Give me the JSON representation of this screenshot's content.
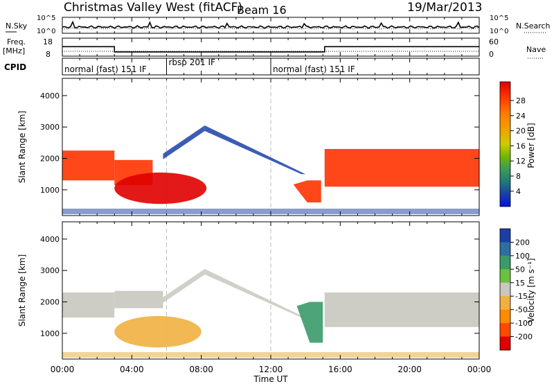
{
  "header": {
    "station": "Christmas Valley West (fitACF)",
    "beam": "Beam 16",
    "date": "19/Mar/2013"
  },
  "noise_panel": {
    "left_label": "N.Sky",
    "right_label": "N.Search",
    "right_line_style": "dotted",
    "left_ticks": [
      "10^5",
      "10^0"
    ],
    "right_ticks": [
      "10^5",
      "10^0"
    ]
  },
  "freq_panel": {
    "left_label_1": "Freq.",
    "left_label_2": "[MHz]",
    "right_label": "Nave",
    "right_line_style": "dotted",
    "left_ticks": [
      "18",
      "8"
    ],
    "right_ticks": [
      "60",
      "0"
    ],
    "freq_segments": [
      {
        "from_h": 0.0,
        "to_h": 3.0,
        "mhz": 13.5
      },
      {
        "from_h": 3.0,
        "to_h": 15.1,
        "mhz": 10.2
      },
      {
        "from_h": 15.1,
        "to_h": 24.0,
        "mhz": 13.5
      }
    ]
  },
  "cpid": {
    "label": "CPID",
    "segments": [
      {
        "text": "normal (fast) 151 IF",
        "from_h": 0.0,
        "to_h": 6.0
      },
      {
        "text": "rbsp 201 IF",
        "from_h": 6.0,
        "to_h": 12.0
      },
      {
        "text": "normal (fast) 151 IF",
        "from_h": 12.0,
        "to_h": 24.0
      }
    ]
  },
  "power_colorbar": {
    "label": "Power [dB]",
    "ticks": [
      "28",
      "24",
      "20",
      "16",
      "12",
      "8",
      "4"
    ],
    "colors": [
      "#e00000",
      "#ff3300",
      "#ff7a00",
      "#f0a000",
      "#cccc00",
      "#6fb800",
      "#3c9a5a",
      "#1f7a78",
      "#1a3fa8",
      "#0010e0"
    ]
  },
  "velocity_colorbar": {
    "label": "Velocity [m s⁻¹]",
    "ticks": [
      "200",
      "100",
      "50",
      "15",
      "-15",
      "-50",
      "-100",
      "-200"
    ],
    "colors": [
      "#1a3fa8",
      "#2e6fa0",
      "#3a9a6a",
      "#6cc040",
      "#c8c8c0",
      "#f0b040",
      "#ff8a00",
      "#ff4a00",
      "#e00000"
    ]
  },
  "chart_data": [
    {
      "type": "heatmap",
      "title": "Power",
      "xlabel": "",
      "ylabel": "Slant Range [km]",
      "xlim_h": [
        0,
        24
      ],
      "ylim_km": [
        180,
        4550
      ],
      "y_ticks": [
        "4000",
        "3000",
        "2000",
        "1000"
      ],
      "y_tick_values": [
        4000,
        3000,
        2000,
        1000
      ],
      "regions": [
        {
          "name": "band-left",
          "from_h": 0.0,
          "to_h": 3.0,
          "low_km": 1300,
          "high_km": 2250,
          "power_db": 26
        },
        {
          "name": "band-morning",
          "from_h": 3.0,
          "to_h": 5.2,
          "low_km": 1150,
          "high_km": 1950,
          "power_db": 25
        },
        {
          "name": "near-echo",
          "from_h": 3.0,
          "to_h": 8.3,
          "low_km": 550,
          "high_km": 1550,
          "power_db": 28
        },
        {
          "name": "arc-rise",
          "from_h": 5.8,
          "to_h": 8.2,
          "low_km": 2150,
          "high_km": 3050,
          "power_db": 6
        },
        {
          "name": "arc-fall",
          "from_h": 8.2,
          "to_h": 14.0,
          "low_km": 1500,
          "high_km": 3050,
          "power_db": 6
        },
        {
          "name": "cusp",
          "from_h": 13.3,
          "to_h": 14.9,
          "low_km": 600,
          "high_km": 1300,
          "power_db": 26
        },
        {
          "name": "band-right",
          "from_h": 15.1,
          "to_h": 24.0,
          "low_km": 1100,
          "high_km": 2300,
          "power_db": 25
        }
      ]
    },
    {
      "type": "heatmap",
      "title": "Velocity",
      "xlabel": "Time UT",
      "ylabel": "Slant Range [km]",
      "xlim_h": [
        0,
        24
      ],
      "ylim_km": [
        180,
        4550
      ],
      "x_ticks": [
        "00:00",
        "04:00",
        "08:00",
        "12:00",
        "16:00",
        "20:00",
        "00:00"
      ],
      "x_tick_hours": [
        0,
        4,
        8,
        12,
        16,
        20,
        24
      ],
      "y_ticks": [
        "4000",
        "3000",
        "2000",
        "1000"
      ],
      "y_tick_values": [
        4000,
        3000,
        2000,
        1000
      ],
      "regions": [
        {
          "name": "band-left",
          "from_h": 0.0,
          "to_h": 3.0,
          "low_km": 1500,
          "high_km": 2300,
          "velocity_ms": 0
        },
        {
          "name": "band-morning",
          "from_h": 3.0,
          "to_h": 5.8,
          "low_km": 1800,
          "high_km": 2350,
          "velocity_ms": 0
        },
        {
          "name": "near-echo",
          "from_h": 3.0,
          "to_h": 8.0,
          "low_km": 550,
          "high_km": 1550,
          "velocity_ms": -50
        },
        {
          "name": "arc-rise",
          "from_h": 5.8,
          "to_h": 8.2,
          "low_km": 2150,
          "high_km": 3050,
          "velocity_ms": 0
        },
        {
          "name": "arc-fall",
          "from_h": 8.2,
          "to_h": 14.0,
          "low_km": 1500,
          "high_km": 3050,
          "velocity_ms": 0
        },
        {
          "name": "cusp",
          "from_h": 13.5,
          "to_h": 15.0,
          "low_km": 700,
          "high_km": 2000,
          "velocity_ms": 50
        },
        {
          "name": "band-right",
          "from_h": 15.1,
          "to_h": 24.0,
          "low_km": 1200,
          "high_km": 2300,
          "velocity_ms": 0
        }
      ]
    }
  ]
}
